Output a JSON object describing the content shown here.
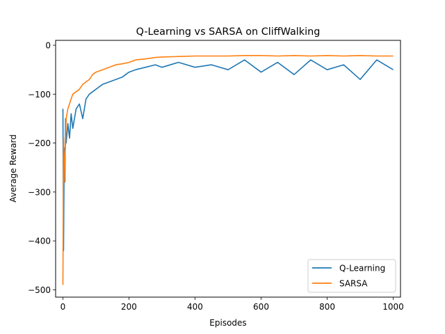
{
  "chart_data": {
    "type": "line",
    "title": "Q-Learning vs SARSA on CliffWalking",
    "xlabel": "Episodes",
    "ylabel": "Average Reward",
    "xlim": [
      -22,
      1022
    ],
    "ylim": [
      -515,
      10
    ],
    "xticks": [
      0,
      200,
      400,
      600,
      800,
      1000
    ],
    "yticks": [
      0,
      -100,
      -200,
      -300,
      -400,
      -500
    ],
    "xtick_labels": [
      "0",
      "200",
      "400",
      "600",
      "800",
      "1000"
    ],
    "ytick_labels": [
      "0",
      "−100",
      "−200",
      "−300",
      "−400",
      "−500"
    ],
    "grid": false,
    "legend_position": "lower right",
    "series": [
      {
        "name": "Q-Learning",
        "color": "#1f77b4",
        "x": [
          0,
          2,
          4,
          6,
          8,
          10,
          15,
          20,
          25,
          30,
          40,
          50,
          60,
          70,
          80,
          90,
          100,
          120,
          140,
          160,
          180,
          200,
          220,
          250,
          280,
          300,
          350,
          400,
          450,
          500,
          550,
          600,
          650,
          700,
          750,
          800,
          850,
          900,
          950,
          1000
        ],
        "y": [
          -130,
          -420,
          -210,
          -280,
          -150,
          -200,
          -160,
          -190,
          -140,
          -170,
          -130,
          -120,
          -150,
          -110,
          -100,
          -95,
          -90,
          -80,
          -75,
          -70,
          -65,
          -55,
          -50,
          -45,
          -40,
          -45,
          -35,
          -45,
          -40,
          -50,
          -30,
          -55,
          -35,
          -60,
          -30,
          -50,
          -40,
          -70,
          -30,
          -50
        ]
      },
      {
        "name": "SARSA",
        "color": "#ff7f0e",
        "x": [
          0,
          2,
          4,
          6,
          8,
          10,
          15,
          20,
          25,
          30,
          40,
          50,
          60,
          70,
          80,
          90,
          100,
          120,
          140,
          160,
          180,
          200,
          220,
          250,
          280,
          300,
          350,
          400,
          450,
          500,
          550,
          600,
          650,
          700,
          750,
          800,
          850,
          900,
          950,
          1000
        ],
        "y": [
          -490,
          -190,
          -280,
          -230,
          -200,
          -150,
          -130,
          -120,
          -110,
          -100,
          -95,
          -90,
          -80,
          -75,
          -70,
          -60,
          -55,
          -50,
          -45,
          -40,
          -38,
          -35,
          -30,
          -28,
          -25,
          -24,
          -23,
          -22,
          -22,
          -22,
          -21,
          -21,
          -22,
          -21,
          -22,
          -21,
          -22,
          -21,
          -22,
          -22
        ]
      }
    ]
  }
}
